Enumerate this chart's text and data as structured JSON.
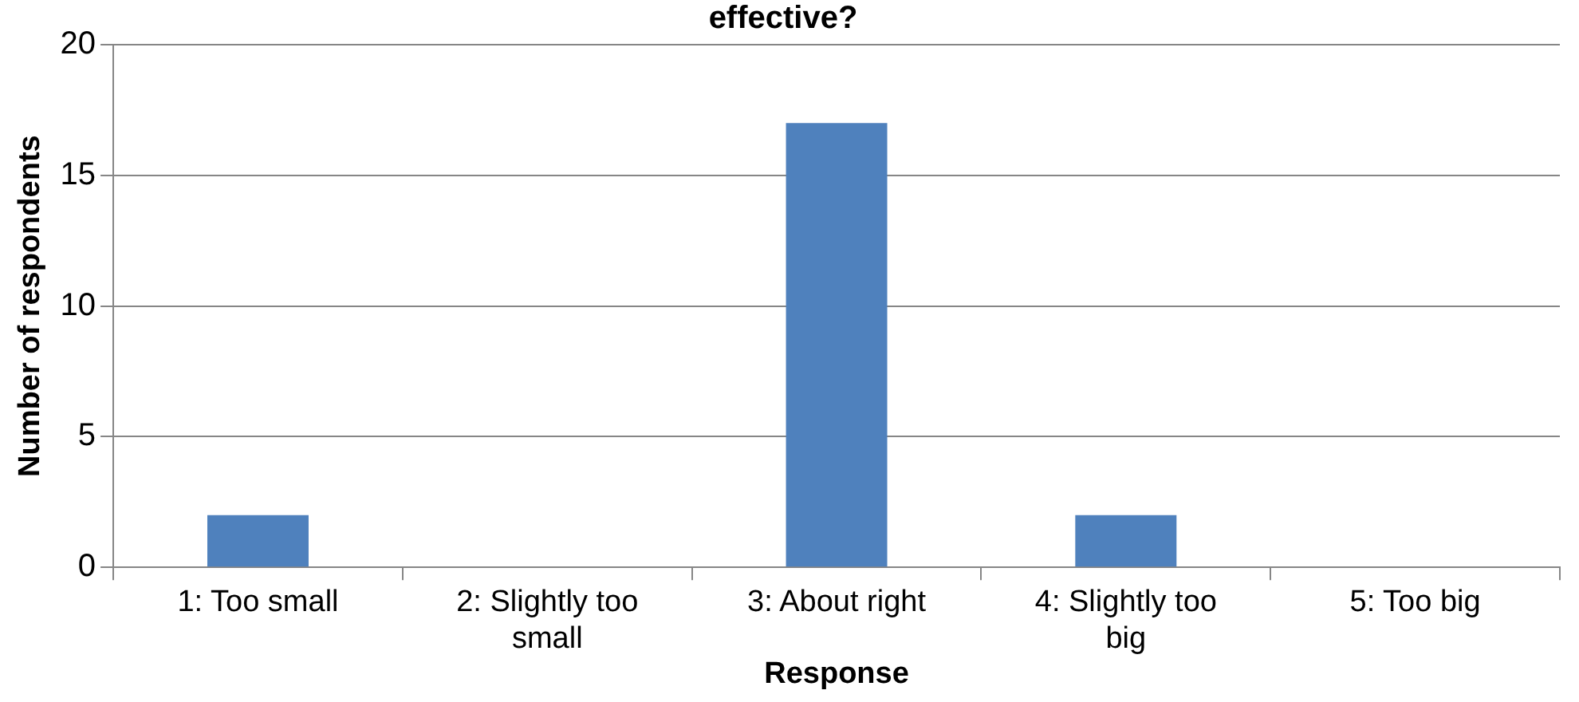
{
  "chart_data": {
    "type": "bar",
    "title": "effective?",
    "xlabel": "Response",
    "ylabel": "Number of respondents",
    "categories": [
      "1: Too small",
      "2: Slightly too small",
      "3: About right",
      "4: Slightly too big",
      "5: Too big"
    ],
    "values": [
      2,
      0,
      17,
      2,
      0
    ],
    "color": "#4f81bd",
    "ylim": [
      0,
      20
    ],
    "yticks": [
      0,
      5,
      10,
      15,
      20
    ],
    "grid": "y",
    "legend": false
  }
}
